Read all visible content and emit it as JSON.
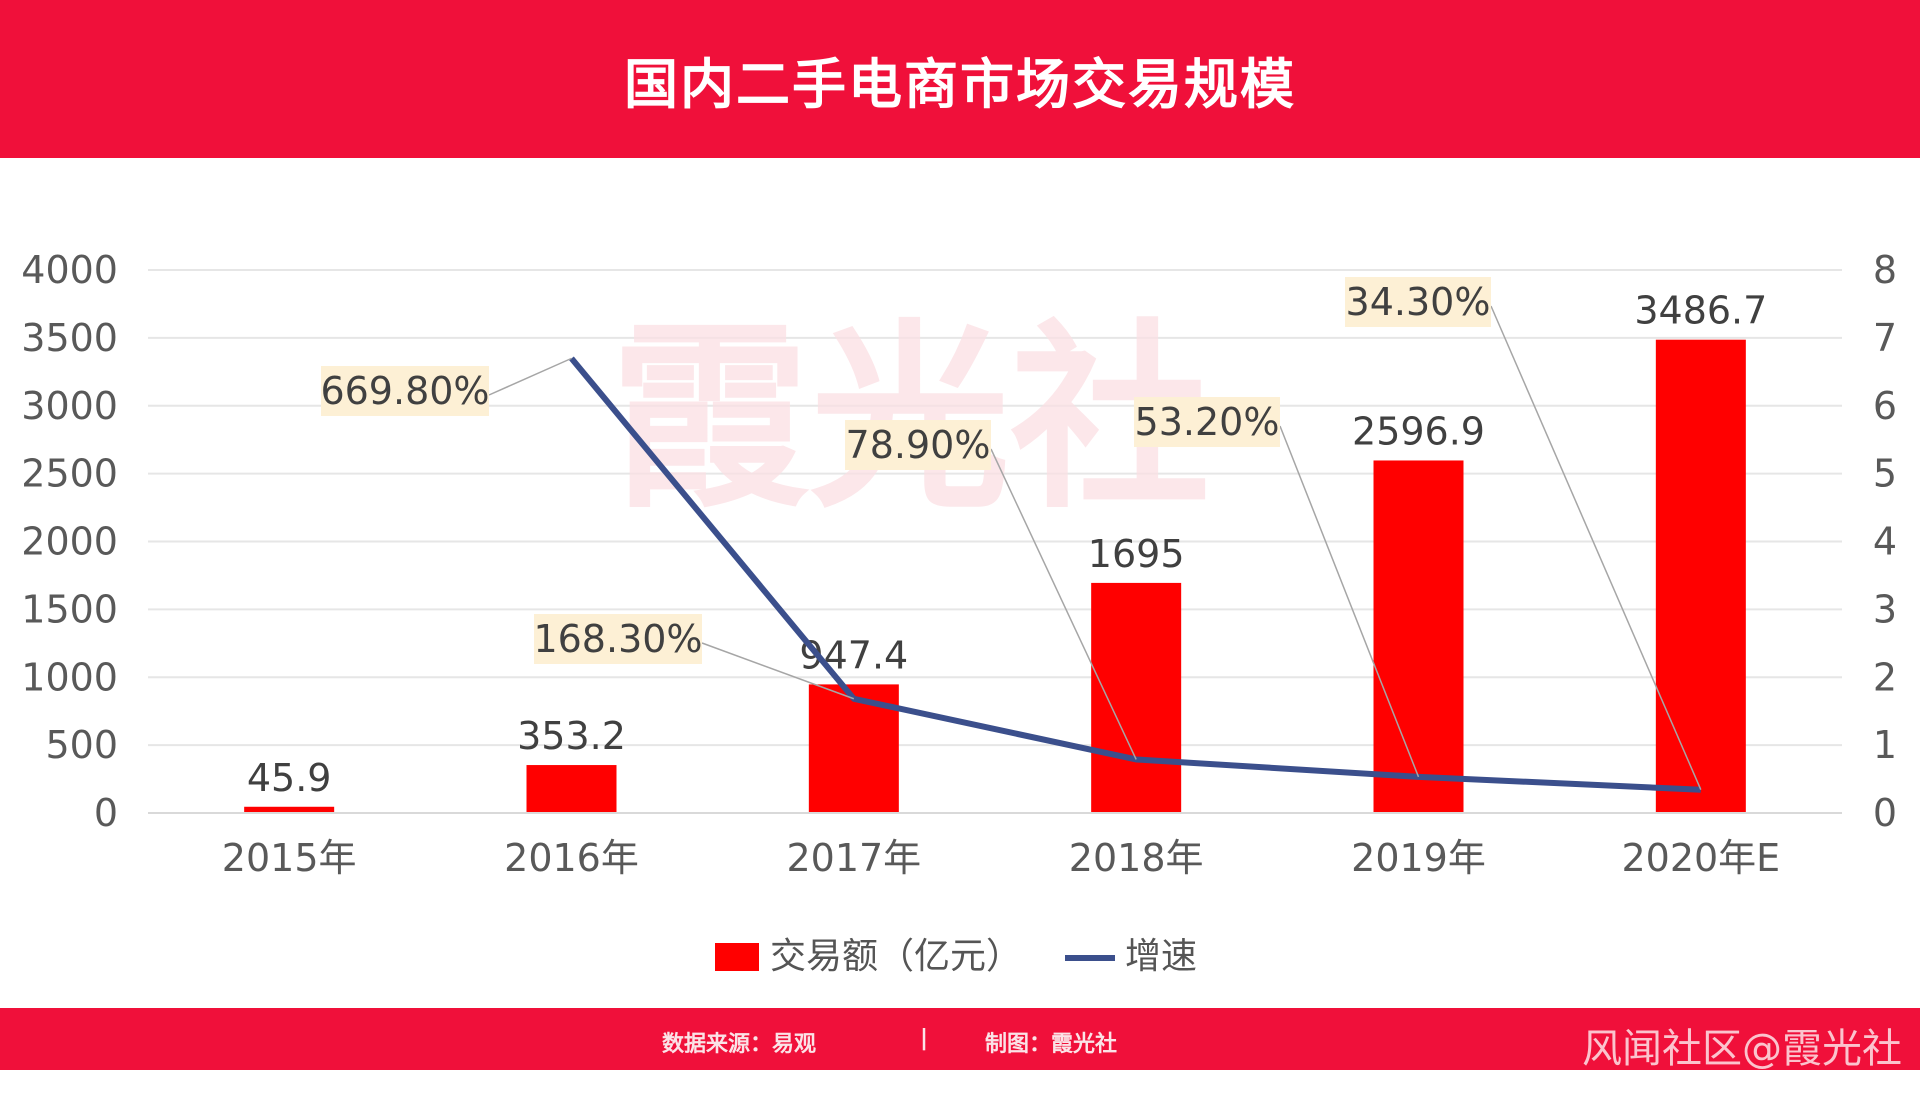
{
  "header": {
    "title": "国内二手电商市场交易规模"
  },
  "chart_data": {
    "type": "bar",
    "title": "国内二手电商市场交易规模",
    "categories": [
      "2015年",
      "2016年",
      "2017年",
      "2018年",
      "2019年",
      "2020年E"
    ],
    "series": [
      {
        "name": "交易额（亿元）",
        "type": "bar",
        "axis": "left",
        "values": [
          45.9,
          353.2,
          947.4,
          1695,
          2596.9,
          3486.7
        ],
        "labels": [
          "45.9",
          "353.2",
          "947.4",
          "1695",
          "2596.9",
          "3486.7"
        ]
      },
      {
        "name": "增速",
        "type": "line",
        "axis": "right",
        "values": [
          null,
          6.698,
          1.683,
          0.789,
          0.532,
          0.343
        ],
        "labels": [
          "",
          "669.80%",
          "168.30%",
          "78.90%",
          "53.20%",
          "34.30%"
        ]
      }
    ],
    "ylim_left": [
      0,
      4000
    ],
    "yticks_left": [
      "0",
      "500",
      "1000",
      "1500",
      "2000",
      "2500",
      "3000",
      "3500",
      "4000"
    ],
    "ylim_right": [
      0,
      8
    ],
    "yticks_right": [
      "0",
      "1",
      "2",
      "3",
      "4",
      "5",
      "6",
      "7",
      "8"
    ],
    "grid": true,
    "legend_position": "bottom",
    "colors": {
      "bar": "#ff0000",
      "line": "#3b4f8c",
      "callout_bg": "#fdf0d5",
      "grid": "#e6e6e6"
    }
  },
  "watermark": {
    "text": "霞光社"
  },
  "footer": {
    "source": "数据来源：易观",
    "separator": "|",
    "maker": "制图：霞光社",
    "credit": "风闻社区@霞光社"
  }
}
